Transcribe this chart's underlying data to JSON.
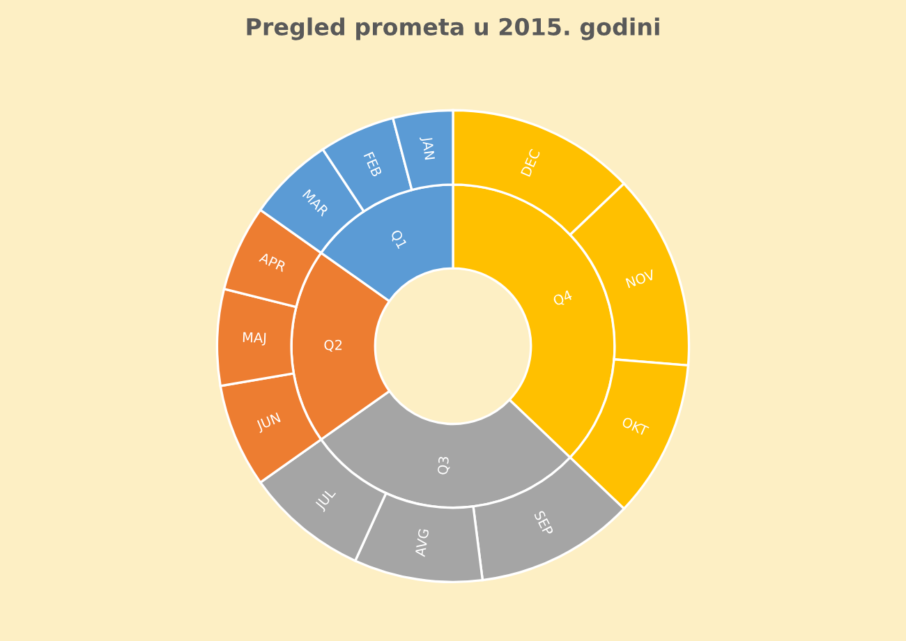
{
  "chart_data": {
    "type": "donut",
    "title": "Pregled prometa u 2015. godini",
    "series": [
      {
        "values": [
          37.1,
          28.1,
          19.6,
          15.2
        ],
        "colors": [
          "#ffc000",
          "#a5a5a5",
          "#ed7d31",
          "#5b9bd5"
        ],
        "value_labels": [
          "Q4",
          "Q3",
          "Q2",
          "Q1"
        ]
      },
      {
        "values": [
          12.9,
          13.4,
          10.8,
          10.9,
          8.8,
          8.4,
          7.1,
          6.6,
          5.9,
          5.9,
          5.2,
          4.1
        ],
        "colors": [
          "#ffc000",
          "#ffc000",
          "#ffc000",
          "#a5a5a5",
          "#a5a5a5",
          "#a5a5a5",
          "#ed7d31",
          "#ed7d31",
          "#ed7d31",
          "#5b9bd5",
          "#5b9bd5",
          "#5b9bd5"
        ],
        "value_labels": [
          "DEC",
          "NOV",
          "OKT",
          "SEP",
          "AVG",
          "JUL",
          "JUN",
          "MAJ",
          "APR",
          "MAR",
          "FEB",
          "JAN"
        ]
      }
    ]
  }
}
